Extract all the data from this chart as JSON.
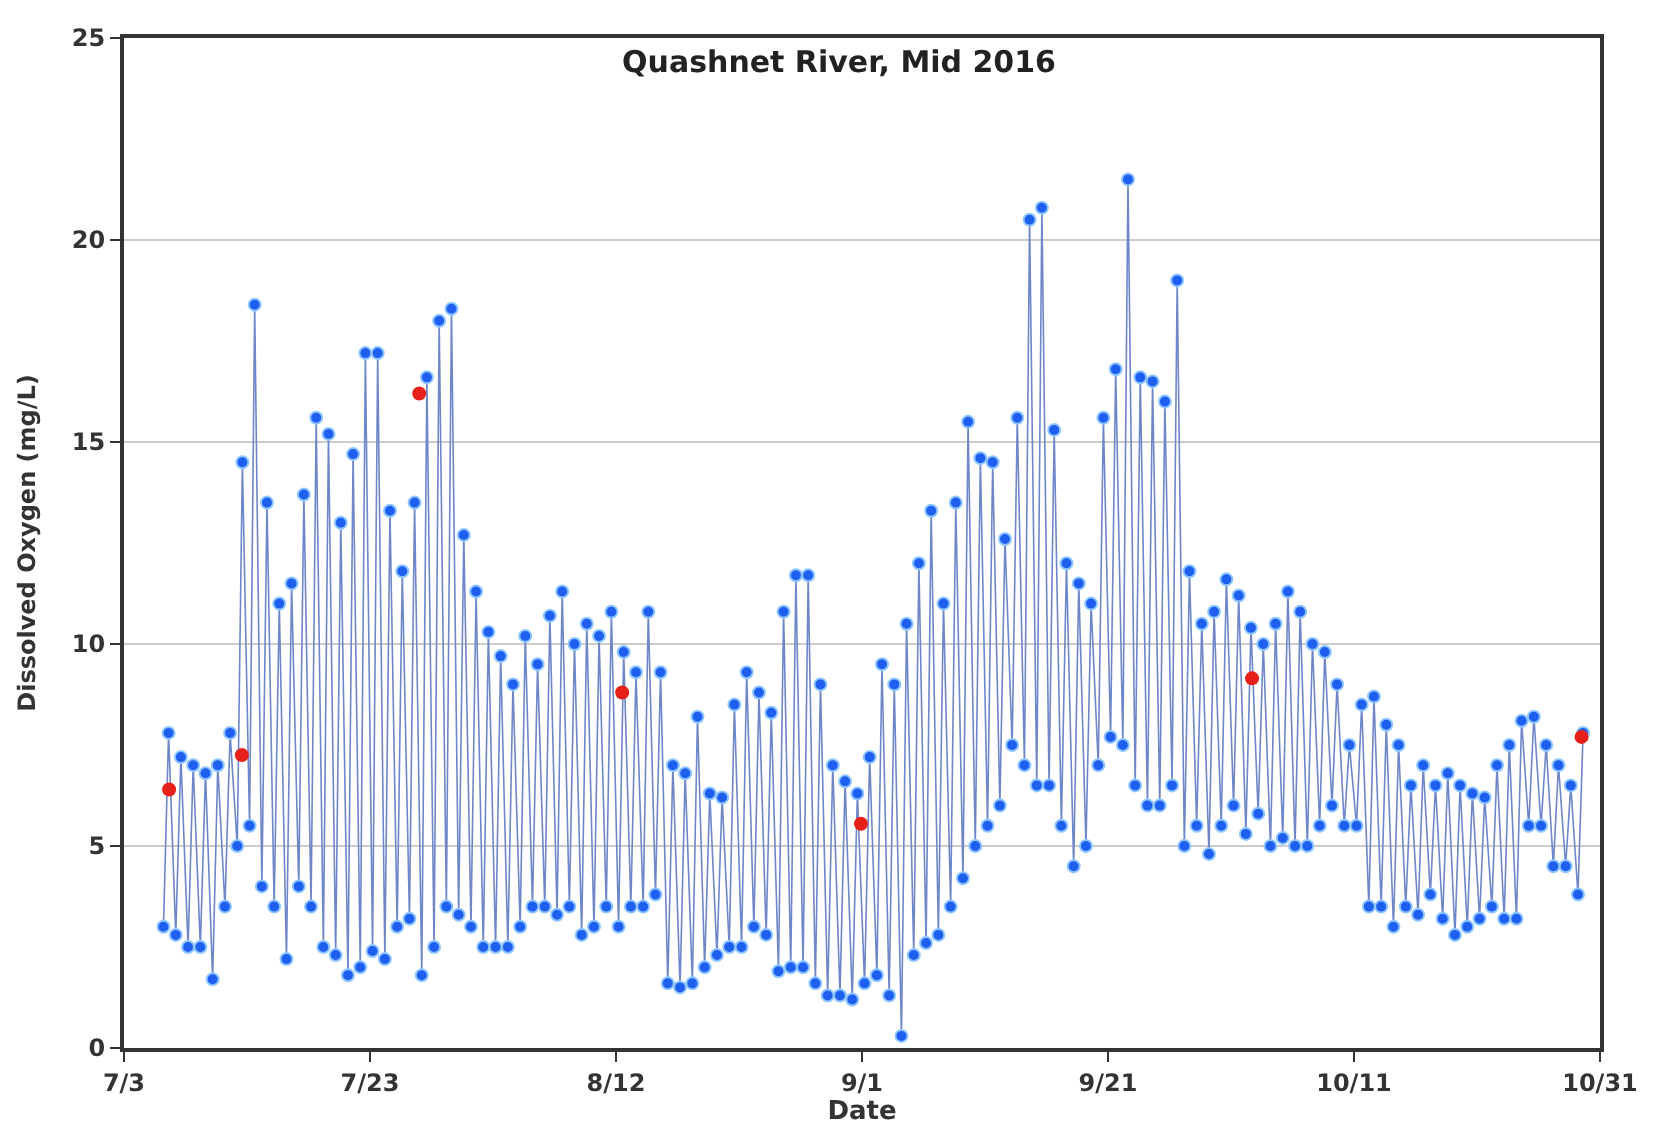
{
  "chart_data": {
    "type": "line",
    "title": "Quashnet River, Mid 2016",
    "xlabel": "Date",
    "ylabel": "Dissolved Oxygen (mg/L)",
    "xlim": [
      "2016-07-03",
      "2016-10-31"
    ],
    "xticks": [
      {
        "value": "2016-07-03",
        "label": "7/3"
      },
      {
        "value": "2016-07-23",
        "label": "7/23"
      },
      {
        "value": "2016-08-12",
        "label": "8/12"
      },
      {
        "value": "2016-09-01",
        "label": "9/1"
      },
      {
        "value": "2016-09-21",
        "label": "9/21"
      },
      {
        "value": "2016-10-11",
        "label": "10/11"
      },
      {
        "value": "2016-10-31",
        "label": "10/31"
      }
    ],
    "ylim": [
      0,
      25
    ],
    "yticks": [
      0,
      5,
      10,
      15,
      20,
      25
    ],
    "grid": "y",
    "marker": "circle",
    "line_style": "solid",
    "series": [
      {
        "color": "#1f5ff0",
        "x": [
          "2016-07-06T05:00",
          "2016-07-06T15:00",
          "2016-07-07T05:00",
          "2016-07-07T15:00",
          "2016-07-08T05:00",
          "2016-07-08T15:00",
          "2016-07-09T05:00",
          "2016-07-09T15:00",
          "2016-07-10T05:00",
          "2016-07-10T15:00",
          "2016-07-11T05:00",
          "2016-07-11T15:00",
          "2016-07-12T05:00",
          "2016-07-12T15:00",
          "2016-07-13T05:00",
          "2016-07-13T15:00",
          "2016-07-14T05:00",
          "2016-07-14T15:00",
          "2016-07-15T05:00",
          "2016-07-15T15:00",
          "2016-07-16T05:00",
          "2016-07-16T15:00",
          "2016-07-17T05:00",
          "2016-07-17T15:00",
          "2016-07-18T05:00",
          "2016-07-18T15:00",
          "2016-07-19T05:00",
          "2016-07-19T15:00",
          "2016-07-20T05:00",
          "2016-07-20T15:00",
          "2016-07-21T05:00",
          "2016-07-21T15:00",
          "2016-07-22T05:00",
          "2016-07-22T15:00",
          "2016-07-23T05:00",
          "2016-07-23T15:00",
          "2016-07-24T05:00",
          "2016-07-24T15:00",
          "2016-07-25T05:00",
          "2016-07-25T15:00",
          "2016-07-26T05:00",
          "2016-07-26T15:00",
          "2016-07-27T05:00",
          "2016-07-27T15:00",
          "2016-07-28T05:00",
          "2016-07-28T15:00",
          "2016-07-29T05:00",
          "2016-07-29T15:00",
          "2016-07-30T05:00",
          "2016-07-30T15:00",
          "2016-07-31T05:00",
          "2016-07-31T15:00",
          "2016-08-01T05:00",
          "2016-08-01T15:00",
          "2016-08-02T05:00",
          "2016-08-02T15:00",
          "2016-08-03T05:00",
          "2016-08-03T15:00",
          "2016-08-04T05:00",
          "2016-08-04T15:00",
          "2016-08-05T05:00",
          "2016-08-05T15:00",
          "2016-08-06T05:00",
          "2016-08-06T15:00",
          "2016-08-07T05:00",
          "2016-08-07T15:00",
          "2016-08-08T05:00",
          "2016-08-08T15:00",
          "2016-08-09T05:00",
          "2016-08-09T15:00",
          "2016-08-10T05:00",
          "2016-08-10T15:00",
          "2016-08-11T05:00",
          "2016-08-11T15:00",
          "2016-08-12T05:00",
          "2016-08-12T15:00",
          "2016-08-13T05:00",
          "2016-08-13T15:00",
          "2016-08-14T05:00",
          "2016-08-14T15:00",
          "2016-08-15T05:00",
          "2016-08-15T15:00",
          "2016-08-16T05:00",
          "2016-08-16T15:00",
          "2016-08-17T05:00",
          "2016-08-17T15:00",
          "2016-08-18T05:00",
          "2016-08-18T15:00",
          "2016-08-19T05:00",
          "2016-08-19T15:00",
          "2016-08-20T05:00",
          "2016-08-20T15:00",
          "2016-08-21T05:00",
          "2016-08-21T15:00",
          "2016-08-22T05:00",
          "2016-08-22T15:00",
          "2016-08-23T05:00",
          "2016-08-23T15:00",
          "2016-08-24T05:00",
          "2016-08-24T15:00",
          "2016-08-25T05:00",
          "2016-08-25T15:00",
          "2016-08-26T05:00",
          "2016-08-26T15:00",
          "2016-08-27T05:00",
          "2016-08-27T15:00",
          "2016-08-28T05:00",
          "2016-08-28T15:00",
          "2016-08-29T05:00",
          "2016-08-29T15:00",
          "2016-08-30T05:00",
          "2016-08-30T15:00",
          "2016-08-31T05:00",
          "2016-08-31T15:00",
          "2016-09-01T05:00",
          "2016-09-01T15:00",
          "2016-09-02T05:00",
          "2016-09-02T15:00",
          "2016-09-03T05:00",
          "2016-09-03T15:00",
          "2016-09-04T05:00",
          "2016-09-04T15:00",
          "2016-09-05T05:00",
          "2016-09-05T15:00",
          "2016-09-06T05:00",
          "2016-09-06T15:00",
          "2016-09-07T05:00",
          "2016-09-07T15:00",
          "2016-09-08T05:00",
          "2016-09-08T15:00",
          "2016-09-09T05:00",
          "2016-09-09T15:00",
          "2016-09-10T05:00",
          "2016-09-10T15:00",
          "2016-09-11T05:00",
          "2016-09-11T15:00",
          "2016-09-12T05:00",
          "2016-09-12T15:00",
          "2016-09-13T05:00",
          "2016-09-13T15:00",
          "2016-09-14T05:00",
          "2016-09-14T15:00",
          "2016-09-15T05:00",
          "2016-09-15T15:00",
          "2016-09-16T05:00",
          "2016-09-16T15:00",
          "2016-09-17T05:00",
          "2016-09-17T15:00",
          "2016-09-18T05:00",
          "2016-09-18T15:00",
          "2016-09-19T05:00",
          "2016-09-19T15:00",
          "2016-09-20T05:00",
          "2016-09-20T15:00",
          "2016-09-21T05:00",
          "2016-09-21T15:00",
          "2016-09-22T05:00",
          "2016-09-22T15:00",
          "2016-09-23T05:00",
          "2016-09-23T15:00",
          "2016-09-24T05:00",
          "2016-09-24T15:00",
          "2016-09-25T05:00",
          "2016-09-25T15:00",
          "2016-09-26T05:00",
          "2016-09-26T15:00",
          "2016-09-27T05:00",
          "2016-09-27T15:00",
          "2016-09-28T05:00",
          "2016-09-28T15:00",
          "2016-09-29T05:00",
          "2016-09-29T15:00",
          "2016-09-30T05:00",
          "2016-09-30T15:00",
          "2016-10-01T05:00",
          "2016-10-01T15:00",
          "2016-10-02T05:00",
          "2016-10-02T15:00",
          "2016-10-03T05:00",
          "2016-10-03T15:00",
          "2016-10-04T05:00",
          "2016-10-04T15:00",
          "2016-10-05T05:00",
          "2016-10-05T15:00",
          "2016-10-06T05:00",
          "2016-10-06T15:00",
          "2016-10-07T05:00",
          "2016-10-07T15:00",
          "2016-10-08T05:00",
          "2016-10-08T15:00",
          "2016-10-09T05:00",
          "2016-10-09T15:00",
          "2016-10-10T05:00",
          "2016-10-10T15:00",
          "2016-10-11T05:00",
          "2016-10-11T15:00",
          "2016-10-12T05:00",
          "2016-10-12T15:00",
          "2016-10-13T05:00",
          "2016-10-13T15:00",
          "2016-10-14T05:00",
          "2016-10-14T15:00",
          "2016-10-15T05:00",
          "2016-10-15T15:00",
          "2016-10-16T05:00",
          "2016-10-16T15:00",
          "2016-10-17T05:00",
          "2016-10-17T15:00",
          "2016-10-18T05:00",
          "2016-10-18T15:00",
          "2016-10-19T05:00",
          "2016-10-19T15:00",
          "2016-10-20T05:00",
          "2016-10-20T15:00",
          "2016-10-21T05:00",
          "2016-10-21T15:00",
          "2016-10-22T05:00",
          "2016-10-22T15:00",
          "2016-10-23T05:00",
          "2016-10-23T15:00",
          "2016-10-24T05:00",
          "2016-10-24T15:00",
          "2016-10-25T05:00",
          "2016-10-25T15:00",
          "2016-10-26T05:00",
          "2016-10-26T15:00",
          "2016-10-27T05:00",
          "2016-10-27T15:00",
          "2016-10-28T05:00",
          "2016-10-28T15:00",
          "2016-10-29T05:00",
          "2016-10-29T15:00"
        ],
        "values": [
          3,
          7.8,
          2.8,
          7.2,
          2.5,
          7,
          2.5,
          6.8,
          1.7,
          7,
          3.5,
          7.8,
          5,
          14.5,
          5.5,
          18.4,
          4,
          13.5,
          3.5,
          11,
          2.2,
          11.5,
          4,
          13.7,
          3.5,
          15.6,
          2.5,
          15.2,
          2.3,
          13,
          1.8,
          14.7,
          2,
          17.2,
          2.4,
          17.2,
          2.2,
          13.3,
          3,
          11.8,
          3.2,
          13.5,
          1.8,
          16.6,
          2.5,
          18,
          3.5,
          18.3,
          3.3,
          12.7,
          3,
          11.3,
          2.5,
          10.3,
          2.5,
          9.7,
          2.5,
          9,
          3,
          10.2,
          3.5,
          9.5,
          3.5,
          10.7,
          3.3,
          11.3,
          3.5,
          10,
          2.8,
          10.5,
          3,
          10.2,
          3.5,
          10.8,
          3,
          9.8,
          3.5,
          9.3,
          3.5,
          10.8,
          3.8,
          9.3,
          1.6,
          7,
          1.5,
          6.8,
          1.6,
          8.2,
          2,
          6.3,
          2.3,
          6.2,
          2.5,
          8.5,
          2.5,
          9.3,
          3,
          8.8,
          2.8,
          8.3,
          1.9,
          10.8,
          2,
          11.7,
          2,
          11.7,
          1.6,
          9,
          1.3,
          7,
          1.3,
          6.6,
          1.2,
          6.3,
          1.6,
          7.2,
          1.8,
          9.5,
          1.3,
          9,
          0.3,
          10.5,
          2.3,
          12,
          2.6,
          13.3,
          2.8,
          11,
          3.5,
          13.5,
          4.2,
          15.5,
          5,
          14.6,
          5.5,
          14.5,
          6,
          12.6,
          7.5,
          15.6,
          7,
          20.5,
          6.5,
          20.8,
          6.5,
          15.3,
          5.5,
          12,
          4.5,
          11.5,
          5,
          11,
          7,
          15.6,
          7.7,
          16.8,
          7.5,
          21.5,
          6.5,
          16.6,
          6,
          16.5,
          6,
          16,
          6.5,
          19,
          5,
          11.8,
          5.5,
          10.5,
          4.8,
          10.8,
          5.5,
          11.6,
          6,
          11.2,
          5.3,
          10.4,
          5.8,
          10,
          5,
          10.5,
          5.2,
          11.3,
          5,
          10.8,
          5,
          10,
          5.5,
          9.8,
          6,
          9,
          5.5,
          7.5,
          5.5,
          8.5,
          3.5,
          8.7,
          3.5,
          8,
          3,
          7.5,
          3.5,
          6.5,
          3.3,
          7,
          3.8,
          6.5,
          3.2,
          6.8,
          2.8,
          6.5,
          3,
          6.3,
          3.2,
          6.2,
          3.5,
          7,
          3.2,
          7.5,
          3.2,
          8.1,
          5.5,
          8.2,
          5.5,
          7.5,
          4.5,
          7,
          4.5,
          6.5,
          3.8,
          7.8
        ]
      },
      {
        "type": "scatter",
        "color": "#e8201a",
        "x": [
          "2016-07-06T16:00",
          "2016-07-12T14:00",
          "2016-07-27T00:00",
          "2016-08-12T12:00",
          "2016-08-31T22:00",
          "2016-10-02T17:00",
          "2016-10-29T12:00"
        ],
        "values": [
          6.4,
          7.25,
          16.2,
          8.8,
          5.55,
          9.15,
          7.7
        ]
      }
    ]
  }
}
